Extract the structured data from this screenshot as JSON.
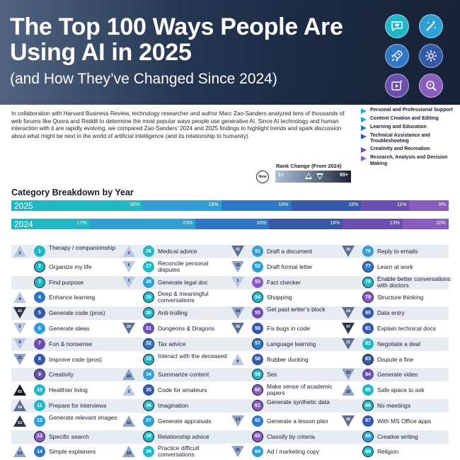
{
  "header": {
    "title": "The Top 100 Ways People Are Using AI in 2025",
    "subtitle": "(and How They’ve Changed Since 2024)",
    "icons": [
      "chat-heart-icon",
      "magic-wand-icon",
      "rocket-icon",
      "gear-icon",
      "play-sparkle-icon",
      "magnifier-icon"
    ]
  },
  "intro": "In collaboration with Harvard Business Review, technology researcher and author Marc Zao-Sanders analyzed tens of thousands of web forums like Quora and Reddit to determine the most popular ways people use generative AI. Since AI technology and human interaction with it are rapidly evolving, we compared Zao-Sanders’ 2024 and 2025 findings to highlight trends and spark discussion about what might be next in the world of artificial intelligence (and its relationship to humanity).",
  "legend": [
    {
      "label": "Personal and Professional Support",
      "color": "#1fb8c6"
    },
    {
      "label": "Content Creation and Editing",
      "color": "#2f9fd6"
    },
    {
      "label": "Learning and Education",
      "color": "#2f78c8"
    },
    {
      "label": "Technical Assistance and Troubleshooting",
      "color": "#3558a8"
    },
    {
      "label": "Creativity and Recreation",
      "color": "#6a4fb0"
    },
    {
      "label": "Research, Analysis and Decision Making",
      "color": "#8a5cc0"
    }
  ],
  "rank_change": {
    "title": "Rank Change (From 2024)",
    "new_label": "New",
    "low": "1+",
    "high": "65+"
  },
  "chart_data": {
    "type": "bar",
    "title": "Category Breakdown by Year",
    "stacked": true,
    "orientation": "horizontal",
    "categories": [
      "2025",
      "2024"
    ],
    "series": [
      {
        "name": "Personal and Professional Support",
        "values": [
          30,
          17
        ],
        "color": "#1fb8c6"
      },
      {
        "name": "Content Creation and Editing",
        "values": [
          18,
          23
        ],
        "color": "#2f9fd6"
      },
      {
        "name": "Learning and Education",
        "values": [
          16,
          16
        ],
        "color": "#2f78c8"
      },
      {
        "name": "Technical Assistance and Troubleshooting",
        "values": [
          16,
          16
        ],
        "color": "#3558a8"
      },
      {
        "name": "Creativity and Recreation",
        "values": [
          11,
          13
        ],
        "color": "#6a4fb0"
      },
      {
        "name": "Research, Analysis and Decision Making",
        "values": [
          9,
          10
        ],
        "color": "#8a5cc0"
      }
    ],
    "percent_labels": [
      [
        "30%",
        "18%",
        "16%",
        "16%",
        "11%",
        "9%"
      ],
      [
        "17%",
        "23%",
        "16%",
        "16%",
        "13%",
        "10%"
      ]
    ]
  },
  "entries": [
    {
      "rank": "1",
      "text": "Therapy / companionship",
      "cat": 0,
      "change": "2",
      "dir": "up",
      "level": 0
    },
    {
      "rank": "2",
      "text": "Organize my life",
      "cat": 0,
      "change": "",
      "dir": "new",
      "level": 0
    },
    {
      "rank": "3",
      "text": "Find purpose",
      "cat": 0,
      "change": "",
      "dir": "new",
      "level": 0
    },
    {
      "rank": "4",
      "text": "Enhance learning",
      "cat": 2,
      "change": "4",
      "dir": "up",
      "level": 0
    },
    {
      "rank": "5",
      "text": "Generate code (pros)",
      "cat": 3,
      "change": "42",
      "dir": "down",
      "level": 3
    },
    {
      "rank": "6",
      "text": "Generate ideas",
      "cat": 1,
      "change": "5",
      "dir": "down",
      "level": 0
    },
    {
      "rank": "7",
      "text": "Fun & nonsense",
      "cat": 4,
      "change": "5",
      "dir": "down",
      "level": 0
    },
    {
      "rank": "8",
      "text": "Improve code (pros)",
      "cat": 3,
      "change": "11",
      "dir": "down",
      "level": 1
    },
    {
      "rank": "9",
      "text": "Creativity",
      "cat": 4,
      "change": "",
      "dir": "new",
      "level": 0
    },
    {
      "rank": "10",
      "text": "Healthier living",
      "cat": 0,
      "change": "65",
      "dir": "up",
      "level": 4
    },
    {
      "rank": "11",
      "text": "Prepare for interviews",
      "cat": 0,
      "change": "24",
      "dir": "up",
      "level": 2
    },
    {
      "rank": "12",
      "text": "Generate relevant images",
      "cat": 1,
      "change": "53",
      "dir": "up",
      "level": 3
    },
    {
      "rank": "13",
      "text": "Specific search",
      "cat": 5,
      "change": "",
      "dir": "new",
      "level": 0
    },
    {
      "rank": "14",
      "text": "Simple explainers",
      "cat": 2,
      "change": "14",
      "dir": "up",
      "level": 1
    },
    {
      "rank": "26",
      "text": "Medical advice",
      "cat": 0,
      "change": "2",
      "dir": "up",
      "level": 0
    },
    {
      "rank": "27",
      "text": "Reconcile personal disputes",
      "cat": 0,
      "change": "6",
      "dir": "down",
      "level": 0
    },
    {
      "rank": "28",
      "text": "Generate legal doc",
      "cat": 1,
      "change": "1",
      "dir": "down",
      "level": 0
    },
    {
      "rank": "29",
      "text": "Deep & meaningful conversations",
      "cat": 0,
      "change": "",
      "dir": "new",
      "level": 0
    },
    {
      "rank": "30",
      "text": "Anti-trolling",
      "cat": 0,
      "change": "",
      "dir": "new",
      "level": 0
    },
    {
      "rank": "31",
      "text": "Dungeons & Dragons",
      "cat": 4,
      "change": "33",
      "dir": "down",
      "level": 2
    },
    {
      "rank": "32",
      "text": "Tax advice",
      "cat": 2,
      "change": "",
      "dir": "new",
      "level": 0
    },
    {
      "rank": "33",
      "text": "Interact with the deceased",
      "cat": 0,
      "change": "",
      "dir": "new",
      "level": 0
    },
    {
      "rank": "34",
      "text": "Summarize content",
      "cat": 1,
      "change": "22",
      "dir": "up",
      "level": 1
    },
    {
      "rank": "35",
      "text": "Code for amateurs",
      "cat": 3,
      "change": "3",
      "dir": "up",
      "level": 0
    },
    {
      "rank": "36",
      "text": "Imagination",
      "cat": 0,
      "change": "",
      "dir": "new",
      "level": 0
    },
    {
      "rank": "37",
      "text": "Generate appraisals",
      "cat": 1,
      "change": "11",
      "dir": "up",
      "level": 1
    },
    {
      "rank": "38",
      "text": "Relationship advice",
      "cat": 0,
      "change": "",
      "dir": "new",
      "level": 0
    },
    {
      "rank": "39",
      "text": "Practice difficult conversations",
      "cat": 0,
      "change": "15",
      "dir": "up",
      "level": 1
    },
    {
      "rank": "51",
      "text": "Draft a document",
      "cat": 1,
      "change": "31",
      "dir": "down",
      "level": 2
    },
    {
      "rank": "52",
      "text": "Draft formal letter",
      "cat": 1,
      "change": "22",
      "dir": "down",
      "level": 1
    },
    {
      "rank": "53",
      "text": "Fact checker",
      "cat": 5,
      "change": "1",
      "dir": "down",
      "level": 0
    },
    {
      "rank": "54",
      "text": "Shopping",
      "cat": 0,
      "change": "",
      "dir": "new",
      "level": 0
    },
    {
      "rank": "55",
      "text": "Get past writer’s block",
      "cat": 4,
      "change": "19",
      "dir": "down",
      "level": 1
    },
    {
      "rank": "56",
      "text": "Fix bugs in code",
      "cat": 3,
      "change": "36",
      "dir": "down",
      "level": 2
    },
    {
      "rank": "57",
      "text": "Language learning",
      "cat": 2,
      "change": "",
      "dir": "new",
      "level": 0
    },
    {
      "rank": "58",
      "text": "Rubber ducking",
      "cat": 3,
      "change": "9",
      "dir": "up",
      "level": 0
    },
    {
      "rank": "59",
      "text": "Sex",
      "cat": 0,
      "change": "",
      "dir": "new",
      "level": 0
    },
    {
      "rank": "60",
      "text": "Make sense of academic papers",
      "cat": 5,
      "change": "",
      "dir": "new",
      "level": 0
    },
    {
      "rank": "61",
      "text": "Generate synthetic data",
      "cat": 5,
      "change": "",
      "dir": "new",
      "level": 0
    },
    {
      "rank": "62",
      "text": "Generate a lesson plan",
      "cat": 2,
      "change": "13",
      "dir": "down",
      "level": 1
    },
    {
      "rank": "63",
      "text": "Classify by criteria",
      "cat": 5,
      "change": "",
      "dir": "new",
      "level": 0
    },
    {
      "rank": "64",
      "text": "Ad / marketing copy",
      "cat": 1,
      "change": "21",
      "dir": "down",
      "level": 1
    },
    {
      "rank": "76",
      "text": "Reply to emails",
      "cat": 1,
      "change": "30",
      "dir": "down",
      "level": 2
    },
    {
      "rank": "77",
      "text": "Learn at work",
      "cat": 2,
      "change": "",
      "dir": "new",
      "level": 0
    },
    {
      "rank": "78",
      "text": "Enable better conversations with doctors",
      "cat": 0,
      "change": "",
      "dir": "new",
      "level": 0
    },
    {
      "rank": "79",
      "text": "Structure thinking",
      "cat": 5,
      "change": "",
      "dir": "new",
      "level": 0
    },
    {
      "rank": "80",
      "text": "Data entry",
      "cat": 3,
      "change": "24",
      "dir": "down",
      "level": 2
    },
    {
      "rank": "81",
      "text": "Explain technical docs",
      "cat": 3,
      "change": "47",
      "dir": "down",
      "level": 3
    },
    {
      "rank": "82",
      "text": "Negotiate a deal",
      "cat": 0,
      "change": "31",
      "dir": "down",
      "level": 2
    },
    {
      "rank": "83",
      "text": "Dispute a fine",
      "cat": 3,
      "change": "",
      "dir": "new",
      "level": 0
    },
    {
      "rank": "84",
      "text": "Generate video",
      "cat": 4,
      "change": "23",
      "dir": "down",
      "level": 1
    },
    {
      "rank": "85",
      "text": "Safe space to ask",
      "cat": 0,
      "change": "23",
      "dir": "up",
      "level": 1
    },
    {
      "rank": "86",
      "text": "No meetings",
      "cat": 0,
      "change": "",
      "dir": "new",
      "level": 0
    },
    {
      "rank": "87",
      "text": "With MS Office apps",
      "cat": 3,
      "change": "36",
      "dir": "down",
      "level": 2
    },
    {
      "rank": "88",
      "text": "Creative writing",
      "cat": 1,
      "change": "",
      "dir": "new",
      "level": 0
    },
    {
      "rank": "89",
      "text": "Religion",
      "cat": 0,
      "change": "",
      "dir": "new",
      "level": 0
    }
  ]
}
